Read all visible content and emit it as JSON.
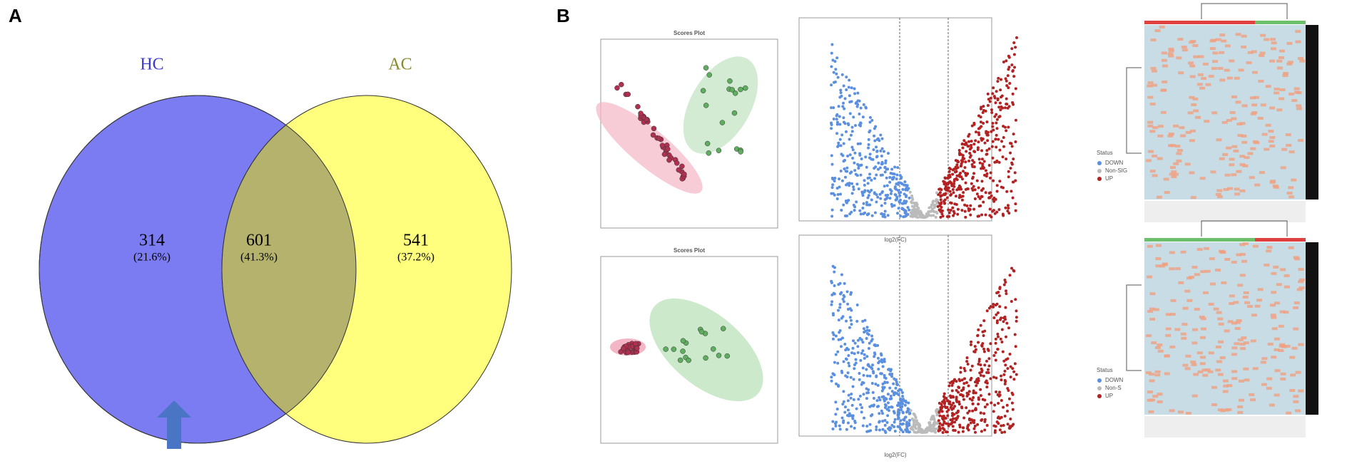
{
  "panel_a": {
    "label": "A",
    "sets": [
      {
        "name": "HC"
      },
      {
        "name": "AC"
      }
    ],
    "regions": [
      {
        "count": "314",
        "percent": "(21.6%)"
      },
      {
        "count": "601",
        "percent": "(41.3%)"
      },
      {
        "count": "541",
        "percent": "(37.2%)"
      }
    ]
  },
  "panel_b": {
    "label": "B",
    "rows": [
      {
        "scores_title": "Scores Plot",
        "volcano_xlabel": "log2(FC)",
        "legend_title": "Status",
        "legend": [
          "DOWN",
          "Non-SIG",
          "UP"
        ]
      },
      {
        "scores_title": "Scores Plot",
        "volcano_xlabel": "log2(FC)",
        "legend_title": "Status",
        "legend": [
          "DOWN",
          "Non-S",
          "UP"
        ]
      }
    ]
  }
}
